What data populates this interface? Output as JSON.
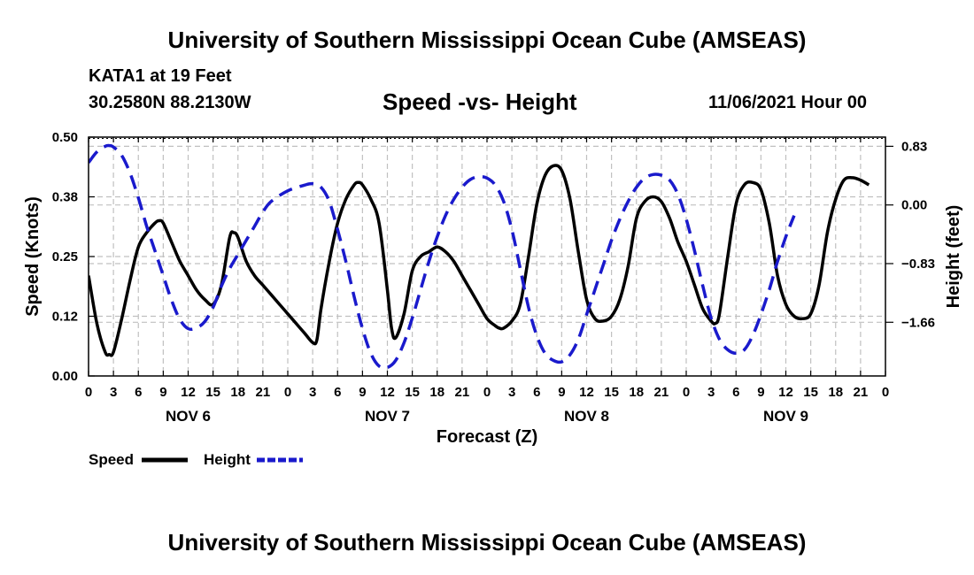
{
  "header": {
    "title": "University of Southern Mississippi Ocean Cube (AMSEAS)",
    "station": "KATA1 at 19 Feet",
    "coordinates": "30.2580N  88.2130W",
    "subtitle": "Speed -vs- Height",
    "datetime": "11/06/2021 Hour 00"
  },
  "footer": {
    "title": "University of Southern Mississippi Ocean Cube (AMSEAS)"
  },
  "chart_data": {
    "type": "line",
    "title": "Speed -vs- Height",
    "xlabel": "Forecast (Z)",
    "ylabel": "Speed (Knots)",
    "y2label": "Height (feet)",
    "xlim": [
      0,
      96
    ],
    "ylim": [
      0,
      0.5
    ],
    "y2lim": [
      -2.42,
      0.96
    ],
    "x_ticks": [
      0,
      3,
      6,
      9,
      12,
      15,
      18,
      21,
      24,
      27,
      30,
      33,
      36,
      39,
      42,
      45,
      48,
      51,
      54,
      57,
      60,
      63,
      66,
      69,
      72,
      75,
      78,
      81,
      84,
      87,
      90,
      93,
      96
    ],
    "x_tick_labels": [
      "0",
      "3",
      "6",
      "9",
      "12",
      "15",
      "18",
      "21",
      "0",
      "3",
      "6",
      "9",
      "12",
      "15",
      "18",
      "21",
      "0",
      "3",
      "6",
      "9",
      "12",
      "15",
      "18",
      "21",
      "0",
      "3",
      "6",
      "9",
      "12",
      "15",
      "18",
      "21",
      "0"
    ],
    "day_labels": [
      {
        "x": 12,
        "label": "NOV 6"
      },
      {
        "x": 36,
        "label": "NOV 7"
      },
      {
        "x": 60,
        "label": "NOV 8"
      },
      {
        "x": 84,
        "label": "NOV 9"
      }
    ],
    "y_ticks": [
      0.0,
      0.125,
      0.25,
      0.375,
      0.5
    ],
    "y_tick_labels": [
      "0.00",
      "0.12",
      "0.25",
      "0.38",
      "0.50"
    ],
    "y2_ticks": [
      0.83,
      0.0,
      -0.83,
      -1.66
    ],
    "y2_tick_labels": [
      "0.83",
      "0.00",
      "−0.83",
      "−1.66"
    ],
    "grid": true,
    "legend_position": "bottom-left",
    "series": [
      {
        "name": "Speed",
        "axis": "left",
        "color": "#000000",
        "style": "solid",
        "points": [
          [
            0,
            0.21
          ],
          [
            1,
            0.11
          ],
          [
            2,
            0.05
          ],
          [
            2.5,
            0.045
          ],
          [
            3,
            0.05
          ],
          [
            4,
            0.12
          ],
          [
            5,
            0.2
          ],
          [
            6,
            0.27
          ],
          [
            7,
            0.3
          ],
          [
            8,
            0.32
          ],
          [
            8.5,
            0.325
          ],
          [
            9,
            0.32
          ],
          [
            10,
            0.28
          ],
          [
            11,
            0.24
          ],
          [
            12,
            0.21
          ],
          [
            13,
            0.18
          ],
          [
            14,
            0.16
          ],
          [
            15,
            0.15
          ],
          [
            16,
            0.19
          ],
          [
            17,
            0.29
          ],
          [
            17.5,
            0.3
          ],
          [
            18,
            0.29
          ],
          [
            19,
            0.24
          ],
          [
            20,
            0.21
          ],
          [
            21,
            0.19
          ],
          [
            22,
            0.17
          ],
          [
            23,
            0.15
          ],
          [
            24,
            0.13
          ],
          [
            25,
            0.11
          ],
          [
            26,
            0.09
          ],
          [
            27,
            0.07
          ],
          [
            27.5,
            0.075
          ],
          [
            28,
            0.14
          ],
          [
            29,
            0.24
          ],
          [
            30,
            0.32
          ],
          [
            31,
            0.37
          ],
          [
            32,
            0.4
          ],
          [
            32.5,
            0.405
          ],
          [
            33,
            0.4
          ],
          [
            34,
            0.37
          ],
          [
            35,
            0.32
          ],
          [
            36,
            0.18
          ],
          [
            36.5,
            0.1
          ],
          [
            37,
            0.08
          ],
          [
            38,
            0.13
          ],
          [
            39,
            0.22
          ],
          [
            40,
            0.25
          ],
          [
            41,
            0.26
          ],
          [
            42,
            0.27
          ],
          [
            43,
            0.26
          ],
          [
            44,
            0.24
          ],
          [
            45,
            0.21
          ],
          [
            46,
            0.18
          ],
          [
            47,
            0.15
          ],
          [
            48,
            0.12
          ],
          [
            49,
            0.105
          ],
          [
            49.5,
            0.1
          ],
          [
            50,
            0.1
          ],
          [
            51,
            0.115
          ],
          [
            52,
            0.15
          ],
          [
            53,
            0.25
          ],
          [
            54,
            0.36
          ],
          [
            55,
            0.42
          ],
          [
            56,
            0.44
          ],
          [
            57,
            0.43
          ],
          [
            58,
            0.37
          ],
          [
            59,
            0.26
          ],
          [
            60,
            0.16
          ],
          [
            61,
            0.12
          ],
          [
            62,
            0.115
          ],
          [
            63,
            0.125
          ],
          [
            64,
            0.16
          ],
          [
            65,
            0.23
          ],
          [
            66,
            0.33
          ],
          [
            67,
            0.365
          ],
          [
            68,
            0.375
          ],
          [
            69,
            0.365
          ],
          [
            70,
            0.33
          ],
          [
            71,
            0.28
          ],
          [
            72,
            0.24
          ],
          [
            73,
            0.19
          ],
          [
            74,
            0.14
          ],
          [
            75,
            0.115
          ],
          [
            75.5,
            0.11
          ],
          [
            76,
            0.13
          ],
          [
            77,
            0.25
          ],
          [
            78,
            0.36
          ],
          [
            79,
            0.4
          ],
          [
            80,
            0.405
          ],
          [
            81,
            0.39
          ],
          [
            82,
            0.32
          ],
          [
            83,
            0.21
          ],
          [
            84,
            0.15
          ],
          [
            85,
            0.125
          ],
          [
            86,
            0.12
          ],
          [
            87,
            0.13
          ],
          [
            88,
            0.19
          ],
          [
            89,
            0.3
          ],
          [
            90,
            0.37
          ],
          [
            91,
            0.41
          ],
          [
            92,
            0.415
          ],
          [
            93,
            0.41
          ],
          [
            94,
            0.4
          ]
        ]
      },
      {
        "name": "Height",
        "axis": "right",
        "color": "#1a1acc",
        "style": "dashed",
        "points": [
          [
            0,
            0.6
          ],
          [
            1,
            0.75
          ],
          [
            2,
            0.83
          ],
          [
            2.5,
            0.84
          ],
          [
            3,
            0.82
          ],
          [
            4,
            0.7
          ],
          [
            5,
            0.45
          ],
          [
            6,
            0.1
          ],
          [
            7,
            -0.3
          ],
          [
            8,
            -0.65
          ],
          [
            9,
            -1.0
          ],
          [
            10,
            -1.35
          ],
          [
            11,
            -1.62
          ],
          [
            12,
            -1.75
          ],
          [
            13,
            -1.74
          ],
          [
            14,
            -1.65
          ],
          [
            15,
            -1.45
          ],
          [
            16,
            -1.15
          ],
          [
            17,
            -0.9
          ],
          [
            18,
            -0.7
          ],
          [
            19,
            -0.5
          ],
          [
            20,
            -0.3
          ],
          [
            21,
            -0.1
          ],
          [
            22,
            0.05
          ],
          [
            24,
            0.2
          ],
          [
            26,
            0.28
          ],
          [
            27,
            0.3
          ],
          [
            28,
            0.25
          ],
          [
            29,
            0.05
          ],
          [
            30,
            -0.35
          ],
          [
            31,
            -0.8
          ],
          [
            32,
            -1.3
          ],
          [
            33,
            -1.75
          ],
          [
            34,
            -2.1
          ],
          [
            35,
            -2.28
          ],
          [
            36,
            -2.3
          ],
          [
            37,
            -2.2
          ],
          [
            38,
            -1.95
          ],
          [
            39,
            -1.6
          ],
          [
            40,
            -1.2
          ],
          [
            41,
            -0.8
          ],
          [
            42,
            -0.45
          ],
          [
            43,
            -0.15
          ],
          [
            44,
            0.08
          ],
          [
            45,
            0.25
          ],
          [
            46,
            0.36
          ],
          [
            47,
            0.4
          ],
          [
            48,
            0.38
          ],
          [
            49,
            0.28
          ],
          [
            50,
            0.05
          ],
          [
            51,
            -0.35
          ],
          [
            52,
            -0.9
          ],
          [
            53,
            -1.45
          ],
          [
            54,
            -1.85
          ],
          [
            55,
            -2.1
          ],
          [
            56,
            -2.2
          ],
          [
            57,
            -2.22
          ],
          [
            58,
            -2.12
          ],
          [
            59,
            -1.9
          ],
          [
            60,
            -1.55
          ],
          [
            61,
            -1.2
          ],
          [
            62,
            -0.85
          ],
          [
            63,
            -0.5
          ],
          [
            64,
            -0.2
          ],
          [
            65,
            0.05
          ],
          [
            66,
            0.25
          ],
          [
            67,
            0.38
          ],
          [
            68,
            0.43
          ],
          [
            69,
            0.42
          ],
          [
            70,
            0.35
          ],
          [
            71,
            0.15
          ],
          [
            72,
            -0.2
          ],
          [
            73,
            -0.65
          ],
          [
            74,
            -1.15
          ],
          [
            75,
            -1.6
          ],
          [
            76,
            -1.9
          ],
          [
            77,
            -2.05
          ],
          [
            78,
            -2.1
          ],
          [
            79,
            -2.05
          ],
          [
            80,
            -1.85
          ],
          [
            81,
            -1.55
          ],
          [
            82,
            -1.2
          ],
          [
            83,
            -0.8
          ],
          [
            84,
            -0.45
          ],
          [
            85,
            -0.15
          ]
        ]
      }
    ]
  }
}
